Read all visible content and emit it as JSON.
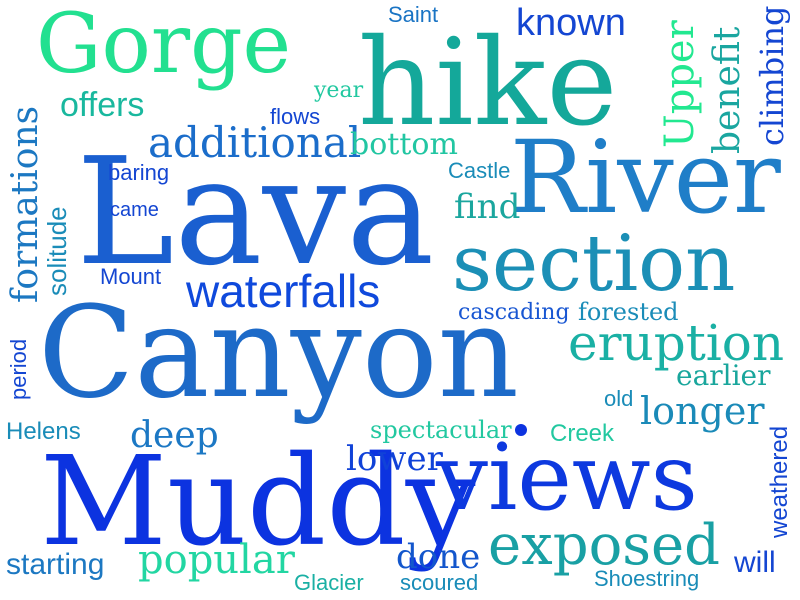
{
  "words": [
    {
      "text": "Lava",
      "color": "#1a5fd0"
    },
    {
      "text": "Canyon",
      "color": "#1d6ac8"
    },
    {
      "text": "hike",
      "color": "#14a89a"
    },
    {
      "text": "Muddy",
      "color": "#0c33e0"
    },
    {
      "text": "River",
      "color": "#1f7ec8"
    },
    {
      "text": "views",
      "color": "#0d39df"
    },
    {
      "text": "Gorge",
      "color": "#22e090"
    },
    {
      "text": "section",
      "color": "#1b8fb6"
    },
    {
      "text": "waterfalls",
      "color": "#0f49dc"
    },
    {
      "text": "exposed",
      "color": "#19a0a4"
    },
    {
      "text": "eruption",
      "color": "#1ab0a4"
    },
    {
      "text": "additional",
      "color": "#1b6dca"
    },
    {
      "text": "known",
      "color": "#1446d2"
    },
    {
      "text": "offers",
      "color": "#19b89e"
    },
    {
      "text": "popular",
      "color": "#22d6a2"
    },
    {
      "text": "deep",
      "color": "#1c78c4"
    },
    {
      "text": "longer",
      "color": "#1a8ab8"
    },
    {
      "text": "lower",
      "color": "#1042d8"
    },
    {
      "text": "done",
      "color": "#1356cc"
    },
    {
      "text": "starting",
      "color": "#1c78c2"
    },
    {
      "text": "bottom",
      "color": "#22c6a2"
    },
    {
      "text": "find",
      "color": "#1ba69e"
    },
    {
      "text": "earlier",
      "color": "#19a69c"
    },
    {
      "text": "spectacular",
      "color": "#22c8a0"
    },
    {
      "text": "cascading",
      "color": "#1856d2"
    },
    {
      "text": "forested",
      "color": "#1a8cb8"
    },
    {
      "text": "Mount",
      "color": "#1446d2"
    },
    {
      "text": "Helens",
      "color": "#1a8cb8"
    },
    {
      "text": "Creek",
      "color": "#22c8a0"
    },
    {
      "text": "Glacier",
      "color": "#1ab0a4"
    },
    {
      "text": "scoured",
      "color": "#1a8cb8"
    },
    {
      "text": "Shoestring",
      "color": "#1a8cb8"
    },
    {
      "text": "will",
      "color": "#1446d2"
    },
    {
      "text": "Saint",
      "color": "#1a74c4"
    },
    {
      "text": "year",
      "color": "#22c8a0"
    },
    {
      "text": "flows",
      "color": "#1446d2"
    },
    {
      "text": "baring",
      "color": "#1446d2"
    },
    {
      "text": "came",
      "color": "#1446d2"
    },
    {
      "text": "Castle",
      "color": "#1a8cb8"
    },
    {
      "text": "old",
      "color": "#1a8cb8"
    },
    {
      "text": "formations",
      "color": "#1c78c2"
    },
    {
      "text": "solitude",
      "color": "#1a8cb8"
    },
    {
      "text": "period",
      "color": "#1446d2"
    },
    {
      "text": "Upper",
      "color": "#22e890"
    },
    {
      "text": "benefit",
      "color": "#1aa6a0"
    },
    {
      "text": "climbing",
      "color": "#1446d2"
    },
    {
      "text": "weathered",
      "color": "#1446d2"
    }
  ]
}
